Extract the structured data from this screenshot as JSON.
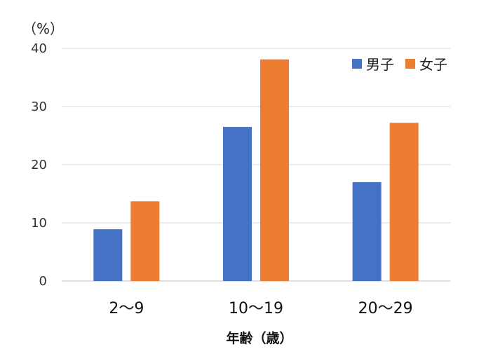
{
  "chart_data": {
    "type": "bar",
    "unit_label": "（%）",
    "xlabel": "年齢（歳）",
    "ylabel": "",
    "ylim": [
      0,
      40
    ],
    "yticks": [
      0,
      10,
      20,
      30,
      40
    ],
    "grid": true,
    "legend_position": "top-right",
    "categories": [
      "2～9",
      "10～19",
      "20～29"
    ],
    "series": [
      {
        "name": "男子",
        "color": "#4472C4",
        "values": [
          8.9,
          26.5,
          17.0
        ]
      },
      {
        "name": "女子",
        "color": "#ED7D31",
        "values": [
          13.7,
          38.1,
          27.2
        ]
      }
    ]
  }
}
